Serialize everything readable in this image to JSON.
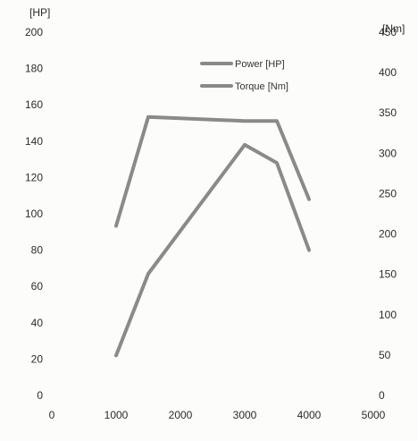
{
  "chart_data": {
    "type": "line",
    "title": "",
    "xlabel": "",
    "ylabel": "",
    "y_left_unit": "[HP]",
    "y_right_unit": "[Nm]",
    "x_ticks": [
      0,
      1000,
      2000,
      3000,
      4000,
      5000
    ],
    "y_left_ticks": [
      0,
      20,
      40,
      60,
      80,
      100,
      120,
      140,
      160,
      180,
      200
    ],
    "y_right_ticks": [
      0,
      50,
      100,
      150,
      200,
      250,
      300,
      350,
      400,
      450
    ],
    "xlim": [
      0,
      5000
    ],
    "ylim_left": [
      0,
      200
    ],
    "ylim_right": [
      0,
      450
    ],
    "grid": false,
    "legend_position": "top-center",
    "series": [
      {
        "name": "Power [HP]",
        "axis": "left",
        "color": "#8a8a8a",
        "x": [
          1000,
          1500,
          3000,
          3500,
          4000
        ],
        "y": [
          22,
          67,
          138,
          128,
          80
        ]
      },
      {
        "name": "Torque [Nm]",
        "axis": "right",
        "color": "#8a8a8a",
        "x": [
          1000,
          1500,
          3000,
          3500,
          4000
        ],
        "y": [
          210,
          345,
          340,
          340,
          243
        ]
      }
    ]
  }
}
